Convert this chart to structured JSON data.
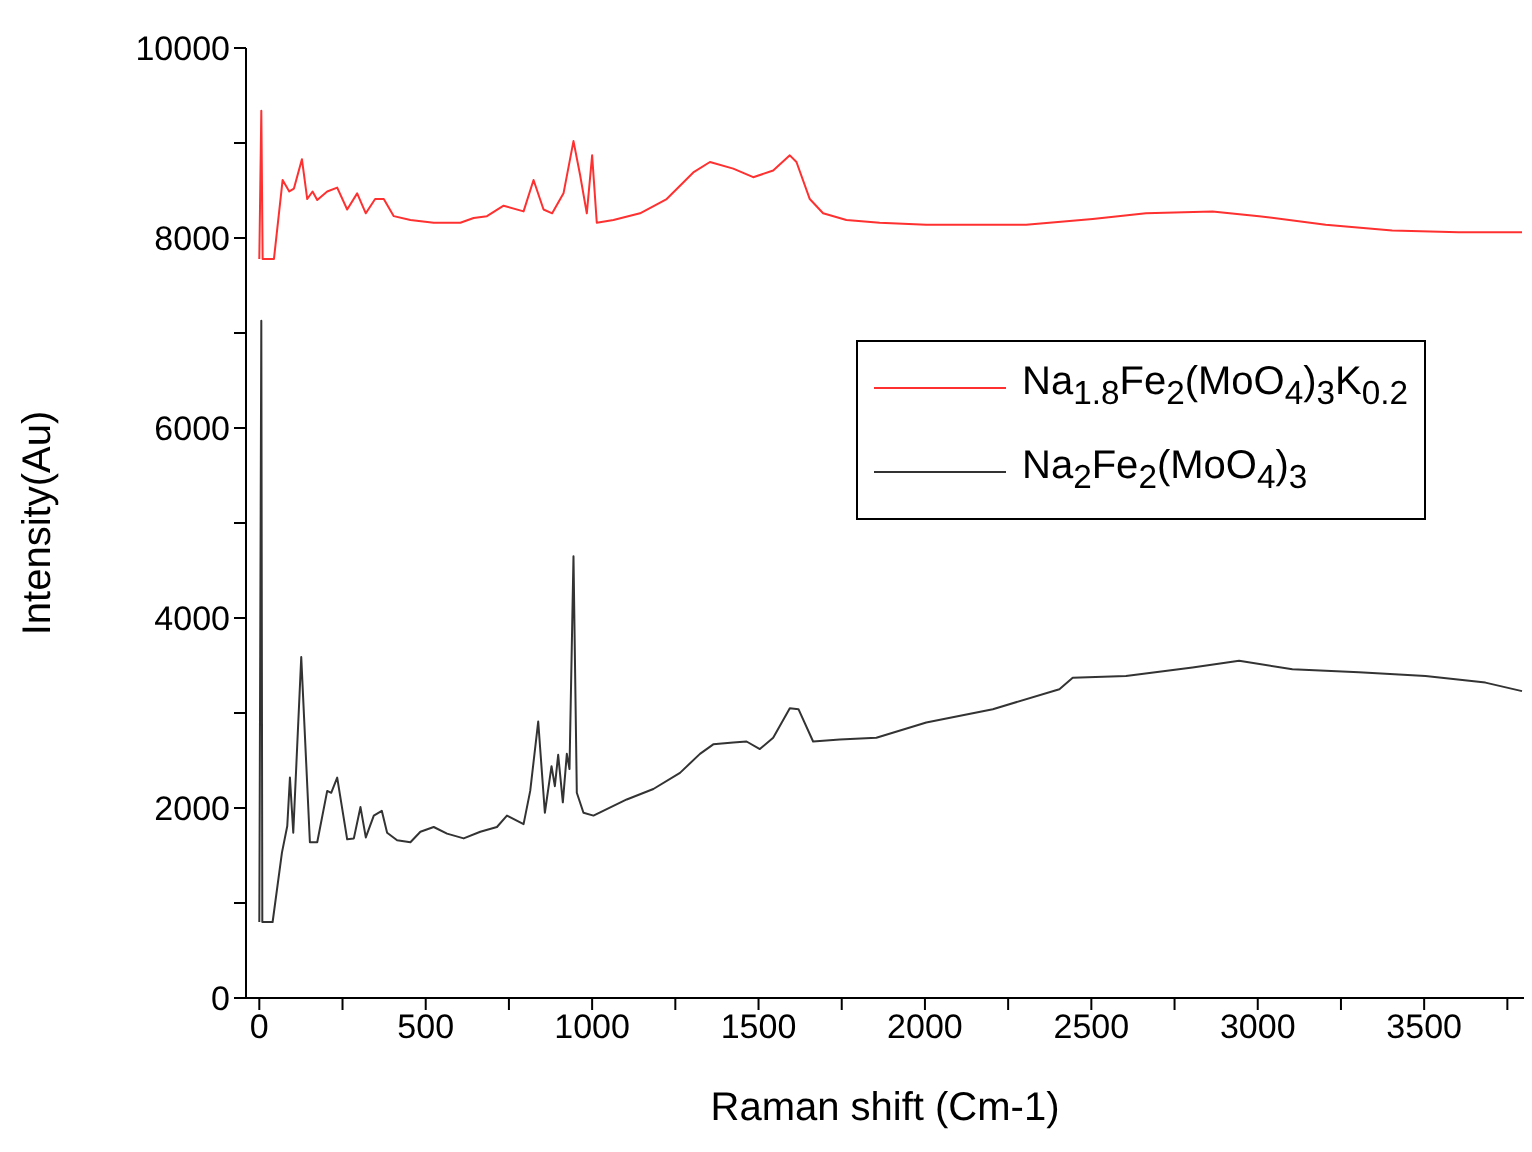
{
  "chart_data": {
    "type": "line",
    "xlabel": "Raman shift (Cm-1)",
    "ylabel": "Intensity(Au)",
    "xlim": [
      -40,
      3800
    ],
    "ylim": [
      0,
      10000
    ],
    "xticks": [
      0,
      {
        "value": 250,
        "label": null
      },
      500,
      {
        "value": 750,
        "label": null
      },
      1000,
      {
        "value": 1250,
        "label": null
      },
      1500,
      {
        "value": 1750,
        "label": null
      },
      2000,
      {
        "value": 2250,
        "label": null
      },
      2500,
      {
        "value": 2750,
        "label": null
      },
      3000,
      {
        "value": 3250,
        "label": null
      },
      3500,
      {
        "value": 3750,
        "label": null
      }
    ],
    "yticks": [
      0,
      {
        "value": 1000,
        "label": null
      },
      2000,
      {
        "value": 3000,
        "label": null
      },
      4000,
      {
        "value": 5000,
        "label": null
      },
      6000,
      {
        "value": 7000,
        "label": null
      },
      8000,
      {
        "value": 9000,
        "label": null
      },
      10000
    ],
    "grid": false,
    "legend": "right",
    "marker": "none",
    "line_style": "solid",
    "series": [
      {
        "name": "Na$_{1.8}$Fe$_{2}$(MoO$_{4}$)$_{3}$K$_{0.2}$",
        "color": "#ff3030",
        "x": [
          0,
          6,
          10,
          44,
          70,
          90,
          104,
          128,
          144,
          160,
          174,
          204,
          234,
          264,
          294,
          320,
          348,
          374,
          404,
          454,
          524,
          604,
          644,
          684,
          734,
          794,
          824,
          854,
          880,
          914,
          944,
          964,
          984,
          1000,
          1014,
          1064,
          1144,
          1224,
          1304,
          1354,
          1424,
          1484,
          1544,
          1594,
          1614,
          1654,
          1694,
          1764,
          1864,
          2004,
          2304,
          2504,
          2664,
          2864,
          3004,
          3204,
          3404,
          3604,
          3794
        ],
        "values": [
          7780,
          9340,
          7780,
          7780,
          8610,
          8490,
          8520,
          8830,
          8410,
          8490,
          8400,
          8490,
          8530,
          8300,
          8470,
          8260,
          8410,
          8410,
          8230,
          8190,
          8160,
          8160,
          8210,
          8230,
          8340,
          8280,
          8610,
          8300,
          8260,
          8470,
          9020,
          8660,
          8260,
          8870,
          8160,
          8190,
          8260,
          8410,
          8690,
          8800,
          8730,
          8640,
          8710,
          8870,
          8800,
          8410,
          8260,
          8190,
          8160,
          8140,
          8140,
          8200,
          8260,
          8280,
          8230,
          8140,
          8080,
          8060,
          8060
        ]
      },
      {
        "name": "Na$_{2}$Fe$_{2}$(MoO$_{4}$)$_{3}$",
        "color": "#333333",
        "x": [
          0,
          6,
          9,
          40,
          68,
          84,
          92,
          102,
          126,
          152,
          174,
          204,
          216,
          234,
          264,
          284,
          304,
          320,
          344,
          368,
          384,
          414,
          454,
          484,
          524,
          564,
          614,
          664,
          714,
          744,
          794,
          814,
          838,
          858,
          878,
          888,
          898,
          912,
          924,
          932,
          944,
          954,
          974,
          1004,
          1104,
          1184,
          1264,
          1324,
          1364,
          1424,
          1464,
          1504,
          1544,
          1594,
          1620,
          1664,
          1744,
          1854,
          2004,
          2204,
          2404,
          2444,
          2604,
          2804,
          2944,
          3104,
          3304,
          3504,
          3684,
          3794
        ],
        "values": [
          800,
          7130,
          800,
          800,
          1530,
          1810,
          2320,
          1740,
          3590,
          1640,
          1640,
          2180,
          2160,
          2320,
          1670,
          1680,
          2010,
          1690,
          1920,
          1970,
          1740,
          1660,
          1640,
          1750,
          1800,
          1730,
          1680,
          1750,
          1800,
          1920,
          1830,
          2180,
          2910,
          1950,
          2440,
          2230,
          2560,
          2060,
          2570,
          2410,
          4650,
          2160,
          1950,
          1920,
          2090,
          2200,
          2370,
          2570,
          2670,
          2690,
          2700,
          2620,
          2740,
          3050,
          3040,
          2700,
          2720,
          2740,
          2900,
          3040,
          3250,
          3370,
          3390,
          3480,
          3550,
          3460,
          3430,
          3390,
          3320,
          3230
        ]
      }
    ]
  }
}
